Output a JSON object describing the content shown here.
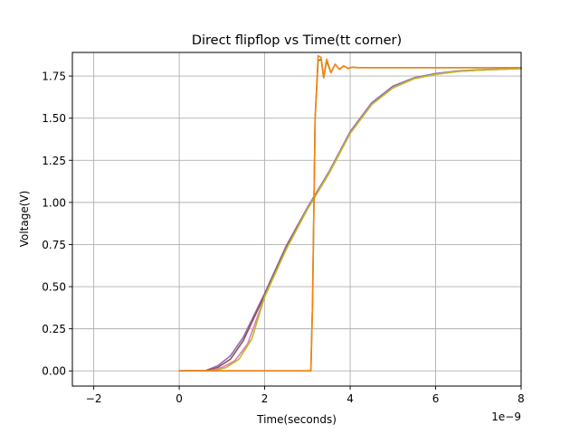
{
  "chart_data": {
    "type": "line",
    "title": "Direct flipflop vs Time(tt corner)",
    "xlabel": "Time(seconds)",
    "ylabel": "Voltage(V)",
    "x_offset_text": "1e−9",
    "xlim": [
      -2.5,
      8
    ],
    "ylim": [
      -0.09,
      1.89
    ],
    "xticks": [
      -2,
      0,
      2,
      4,
      6,
      8
    ],
    "xtick_labels": [
      "−2",
      "0",
      "2",
      "4",
      "6",
      "8"
    ],
    "yticks": [
      0.0,
      0.25,
      0.5,
      0.75,
      1.0,
      1.25,
      1.5,
      1.75
    ],
    "ytick_labels": [
      "0.00",
      "0.25",
      "0.50",
      "0.75",
      "1.00",
      "1.25",
      "1.50",
      "1.75"
    ],
    "grid": true,
    "series": [
      {
        "color": "#9467bd",
        "x": [
          0,
          0.6,
          0.9,
          1.2,
          1.5,
          2.0,
          2.5,
          3.0,
          3.5,
          4.0,
          4.5,
          5.0,
          5.5,
          6.0,
          6.5,
          7.0,
          7.5,
          8.0
        ],
        "y": [
          0,
          0,
          0.03,
          0.09,
          0.2,
          0.46,
          0.74,
          0.97,
          1.18,
          1.42,
          1.59,
          1.69,
          1.74,
          1.765,
          1.78,
          1.787,
          1.792,
          1.795
        ]
      },
      {
        "color": "#8c564b",
        "x": [
          0,
          0.6,
          0.9,
          1.2,
          1.5,
          2.0,
          2.5,
          3.0,
          3.5,
          4.0,
          4.5,
          5.0,
          5.5,
          6.0,
          6.5,
          7.0,
          7.5,
          8.0
        ],
        "y": [
          0,
          0,
          0.02,
          0.07,
          0.18,
          0.45,
          0.73,
          0.96,
          1.17,
          1.41,
          1.58,
          1.68,
          1.735,
          1.76,
          1.777,
          1.785,
          1.79,
          1.795
        ]
      },
      {
        "color": "#e377c2",
        "x": [
          0,
          0.7,
          1.0,
          1.3,
          1.6,
          2.0,
          2.5,
          3.0,
          3.5,
          4.0,
          4.5,
          5.0,
          5.5,
          6.0,
          6.5,
          7.0,
          7.5,
          8.0
        ],
        "y": [
          0,
          0,
          0.02,
          0.06,
          0.16,
          0.44,
          0.72,
          0.96,
          1.17,
          1.41,
          1.58,
          1.68,
          1.735,
          1.76,
          1.777,
          1.785,
          1.79,
          1.795
        ]
      },
      {
        "color": "#bcbd22",
        "x": [
          0,
          0.8,
          1.1,
          1.4,
          1.7,
          2.0,
          2.5,
          3.0,
          3.5,
          4.0,
          4.5,
          5.0,
          5.5,
          6.0,
          6.5,
          7.0,
          7.5,
          8.0
        ],
        "y": [
          0,
          0,
          0.02,
          0.07,
          0.19,
          0.44,
          0.72,
          0.96,
          1.17,
          1.41,
          1.58,
          1.68,
          1.735,
          1.76,
          1.777,
          1.785,
          1.79,
          1.795
        ]
      },
      {
        "color": "#2ca02c",
        "x": [
          0,
          3.08,
          3.12,
          3.18,
          3.25,
          3.32,
          3.38,
          3.45,
          3.55,
          3.65,
          3.75,
          3.85,
          3.95,
          4.05,
          4.2,
          8.0
        ],
        "y": [
          0,
          0,
          0.4,
          1.5,
          1.84,
          1.85,
          1.74,
          1.84,
          1.77,
          1.82,
          1.79,
          1.81,
          1.795,
          1.802,
          1.8,
          1.8
        ]
      },
      {
        "color": "#ff7f0e",
        "x": [
          0,
          3.08,
          3.12,
          3.18,
          3.25,
          3.32,
          3.38,
          3.45,
          3.55,
          3.65,
          3.75,
          3.85,
          3.95,
          4.05,
          4.2,
          8.0
        ],
        "y": [
          0,
          0,
          0.4,
          1.5,
          1.87,
          1.86,
          1.74,
          1.85,
          1.77,
          1.82,
          1.79,
          1.81,
          1.795,
          1.802,
          1.8,
          1.8
        ]
      }
    ]
  }
}
